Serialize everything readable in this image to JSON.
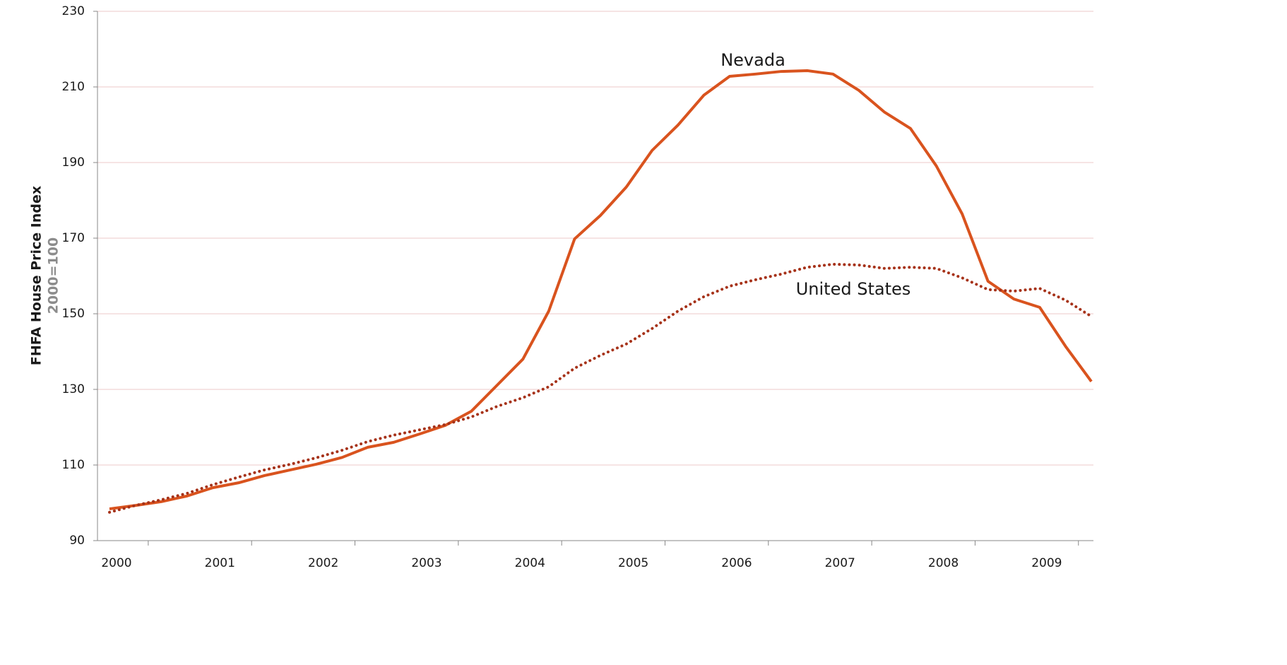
{
  "chart_data": {
    "type": "line",
    "y_axis_label": "FHFA House Price Index",
    "y_axis_sublabel": "2000=100",
    "categories": [
      "2000",
      null,
      null,
      null,
      "2001",
      null,
      null,
      null,
      "2002",
      null,
      null,
      null,
      "2003",
      null,
      null,
      null,
      "2004",
      null,
      null,
      null,
      "2005",
      null,
      null,
      null,
      "2006",
      null,
      null,
      null,
      "2007",
      null,
      null,
      null,
      "2008",
      null,
      null,
      null,
      "2009",
      null,
      null
    ],
    "series": [
      {
        "name": "Nevada",
        "color": "#d9531e",
        "style": "solid",
        "values": [
          98.4,
          99.3,
          100.3,
          101.8,
          104.0,
          105.3,
          107.2,
          108.7,
          110.2,
          112.0,
          114.7,
          116.0,
          118.2,
          120.5,
          124.2,
          131.1,
          138.0,
          150.7,
          169.8,
          176.0,
          183.5,
          193.2,
          199.9,
          207.8,
          212.8,
          213.4,
          214.1,
          214.3,
          213.4,
          209.1,
          203.3,
          199.0,
          189.1,
          176.4,
          158.6,
          153.9,
          151.7,
          141.4,
          132.1
        ]
      },
      {
        "name": "United States",
        "color": "#a63219",
        "style": "dotted",
        "values": [
          97.5,
          99.3,
          100.8,
          102.5,
          104.8,
          106.8,
          108.7,
          110.2,
          111.9,
          113.9,
          116.2,
          117.9,
          119.3,
          120.7,
          122.7,
          125.5,
          127.8,
          130.7,
          135.6,
          139.0,
          142.0,
          146.1,
          150.7,
          154.5,
          157.3,
          159.0,
          160.5,
          162.3,
          163.1,
          162.9,
          162.0,
          162.3,
          162.0,
          159.5,
          156.4,
          156.0,
          156.7,
          153.6,
          149.3
        ]
      }
    ],
    "ylim": [
      90,
      230
    ],
    "yticks": [
      90,
      110,
      130,
      150,
      170,
      190,
      210,
      230
    ],
    "grid": true
  }
}
